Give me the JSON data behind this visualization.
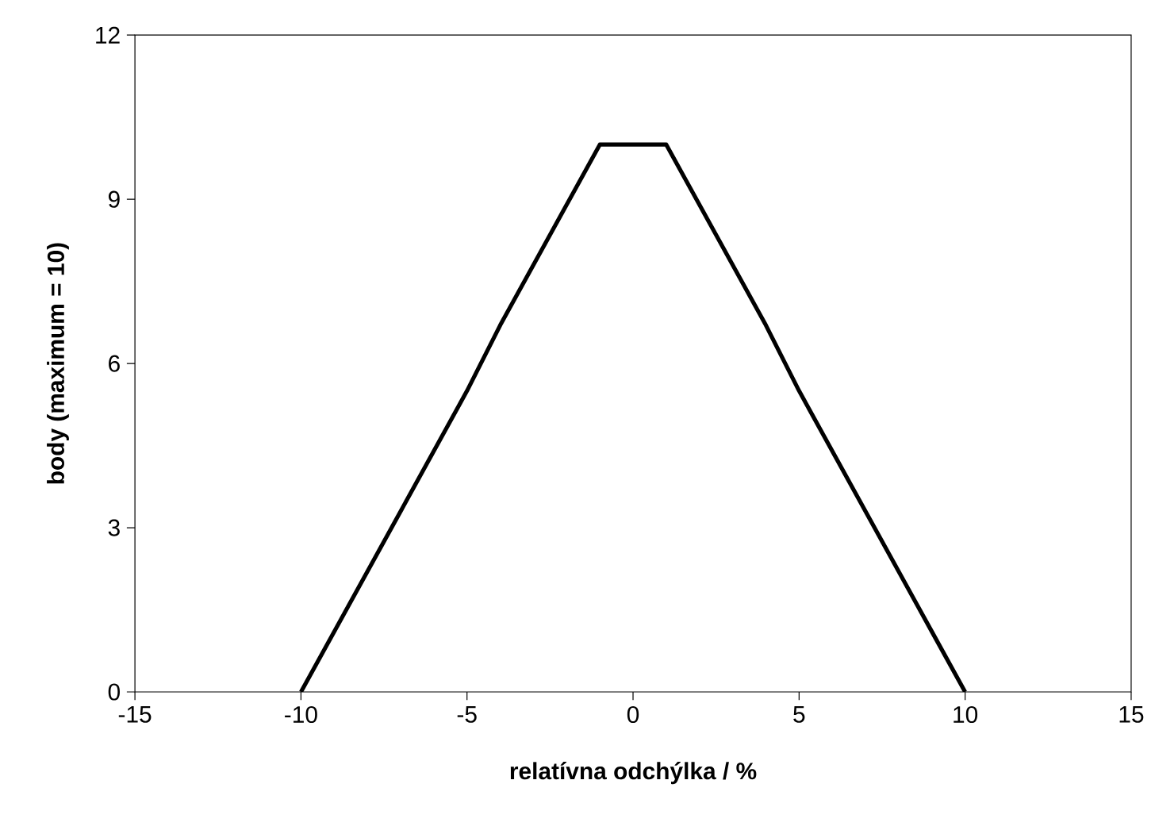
{
  "chart_data": {
    "type": "line",
    "xlabel": "relatívna odchýlka / %",
    "ylabel": "body (maximum = 10)",
    "x": [
      -10,
      -9,
      -8,
      -7,
      -6,
      -5,
      -4,
      -3,
      -2,
      -1,
      0,
      1,
      2,
      3,
      4,
      5,
      6,
      7,
      8,
      9,
      10
    ],
    "series": [
      {
        "color": "#000000",
        "values": [
          0,
          1.1,
          2.2,
          3.3,
          4.4,
          5.5,
          6.7,
          7.8,
          8.9,
          10,
          10,
          10,
          8.9,
          7.8,
          6.7,
          5.5,
          4.4,
          3.3,
          2.2,
          1.1,
          0
        ]
      }
    ],
    "xlim": [
      -15,
      15
    ],
    "ylim": [
      0,
      12
    ],
    "xticks": [
      -15,
      -10,
      -5,
      0,
      5,
      10,
      15
    ],
    "yticks": [
      0,
      3,
      6,
      9,
      12
    ],
    "grid": false,
    "marker": "none",
    "line_style": "solid"
  }
}
